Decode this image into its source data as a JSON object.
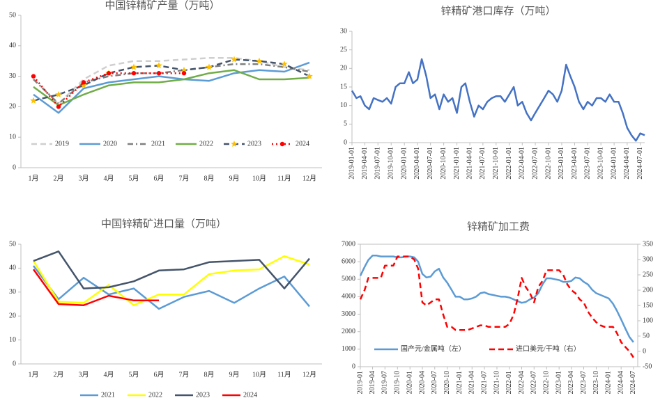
{
  "chart_data": [
    {
      "type": "line",
      "title": "中国锌精矿产量（万吨）",
      "categories": [
        "1月",
        "2月",
        "3月",
        "4月",
        "5月",
        "6月",
        "7月",
        "8月",
        "9月",
        "10月",
        "11月",
        "12月"
      ],
      "ylim": [
        0,
        50
      ],
      "yticks": [
        0,
        10,
        20,
        30,
        40,
        50
      ],
      "legend": "inside-bottom",
      "series": [
        {
          "name": "2019",
          "color": "#cfcfcf",
          "style": "dashed",
          "values": [
            29,
            21,
            29,
            33.5,
            35,
            35,
            35.5,
            36,
            36,
            35,
            33,
            32
          ]
        },
        {
          "name": "2020",
          "color": "#5b9bd5",
          "style": "solid",
          "values": [
            24,
            18,
            26,
            28,
            29,
            30,
            29,
            28.5,
            31,
            32,
            31.5,
            34.5
          ]
        },
        {
          "name": "2021",
          "color": "#7f7f7f",
          "style": "dashdot",
          "values": [
            29,
            21,
            28,
            30,
            31,
            31,
            32,
            33,
            34,
            34,
            33,
            31.5
          ]
        },
        {
          "name": "2022",
          "color": "#70ad47",
          "style": "solid",
          "values": [
            26.5,
            20.5,
            24,
            27,
            28,
            28,
            29,
            31,
            32,
            29,
            29,
            29.5
          ]
        },
        {
          "name": "2023",
          "color": "#44546a",
          "style": "dashed",
          "marker": "star",
          "marker_color": "#ffc000",
          "values": [
            22,
            24,
            27,
            31,
            33,
            33.5,
            32,
            33,
            35.5,
            35,
            34,
            30
          ]
        },
        {
          "name": "2024",
          "color": "#ff0000",
          "style": "dotted",
          "marker": "circle",
          "marker_color": "#ff0000",
          "values": [
            30,
            20,
            28,
            31,
            31,
            31,
            31,
            null,
            null,
            null,
            null,
            null
          ]
        }
      ]
    },
    {
      "type": "time-line",
      "title": "锌精矿港口库存（万吨）",
      "x": [
        "2019-01-01",
        "2019-02-01",
        "2019-03-01",
        "2019-04-01",
        "2019-05-01",
        "2019-06-01",
        "2019-07-01",
        "2019-08-01",
        "2019-09-01",
        "2019-10-01",
        "2019-11-01",
        "2019-12-01",
        "2020-01-01",
        "2020-02-01",
        "2020-03-01",
        "2020-04-01",
        "2020-05-01",
        "2020-06-01",
        "2020-07-01",
        "2020-08-01",
        "2020-09-01",
        "2020-10-01",
        "2020-11-01",
        "2020-12-01",
        "2021-01-01",
        "2021-02-01",
        "2021-03-01",
        "2021-04-01",
        "2021-05-01",
        "2021-06-01",
        "2021-07-01",
        "2021-08-01",
        "2021-09-01",
        "2021-10-01",
        "2021-11-01",
        "2021-12-01",
        "2022-01-01",
        "2022-02-01",
        "2022-03-01",
        "2022-04-01",
        "2022-05-01",
        "2022-06-01",
        "2022-07-01",
        "2022-08-01",
        "2022-09-01",
        "2022-10-01",
        "2022-11-01",
        "2022-12-01",
        "2023-01-01",
        "2023-02-01",
        "2023-03-01",
        "2023-04-01",
        "2023-05-01",
        "2023-06-01",
        "2023-07-01",
        "2023-08-01",
        "2023-09-01",
        "2023-10-01",
        "2023-11-01",
        "2023-12-01",
        "2024-01-01",
        "2024-02-01",
        "2024-03-01",
        "2024-04-01",
        "2024-05-01",
        "2024-06-01",
        "2024-07-01",
        "2024-08-01"
      ],
      "xlim": [
        "2019-01-01",
        "2024-08-01"
      ],
      "xticks": [
        "2019-01-01",
        "2019-04-01",
        "2019-07-01",
        "2019-10-01",
        "2020-01-01",
        "2020-04-01",
        "2020-07-01",
        "2020-10-01",
        "2021-01-01",
        "2021-04-01",
        "2021-07-01",
        "2021-10-01",
        "2022-01-01",
        "2022-04-01",
        "2022-07-01",
        "2022-10-01",
        "2023-01-01",
        "2023-04-01",
        "2023-07-01",
        "2023-10-01",
        "2024-01-01",
        "2024-04-01",
        "2024-07-01"
      ],
      "ylim": [
        0,
        30
      ],
      "yticks": [
        0,
        5,
        10,
        15,
        20,
        25,
        30
      ],
      "series": [
        {
          "color": "#4472c4",
          "style": "solid",
          "values": [
            14,
            12,
            12.5,
            10,
            9,
            12,
            11.5,
            11,
            12,
            10.5,
            15,
            16,
            16,
            19,
            16,
            17,
            22.5,
            18,
            12,
            13,
            9,
            13,
            11,
            12,
            8,
            15,
            16,
            11,
            7,
            10,
            9,
            11,
            12,
            12.5,
            12.5,
            11,
            13,
            15,
            10,
            11,
            8,
            6,
            8,
            10,
            12,
            14,
            13,
            11,
            14,
            21,
            18,
            15,
            11,
            9,
            11,
            10,
            12,
            12,
            11,
            13,
            11,
            11,
            8,
            4,
            2,
            0.5,
            2.5,
            2
          ]
        }
      ]
    },
    {
      "type": "line",
      "title": "中国锌精矿进口量（万吨）",
      "categories": [
        "1月",
        "2月",
        "3月",
        "4月",
        "5月",
        "6月",
        "7月",
        "8月",
        "9月",
        "10月",
        "11月",
        "12月"
      ],
      "ylim": [
        0,
        50
      ],
      "yticks": [
        0,
        10,
        20,
        30,
        40,
        50
      ],
      "legend": "below",
      "series": [
        {
          "name": "2021",
          "color": "#5b9bd5",
          "style": "solid",
          "values": [
            41,
            27,
            36,
            29,
            31.5,
            23,
            28,
            30.5,
            25.5,
            31.5,
            36.5,
            24
          ]
        },
        {
          "name": "2022",
          "color": "#ffff00",
          "style": "solid",
          "values": [
            43,
            26,
            25.5,
            33,
            24.5,
            29,
            29,
            37.5,
            39,
            39.5,
            45,
            41.5
          ]
        },
        {
          "name": "2023",
          "color": "#44546a",
          "style": "solid",
          "values": [
            43,
            47,
            31.5,
            32,
            34.5,
            39,
            39.5,
            42.5,
            43,
            43.5,
            31.5,
            44
          ]
        },
        {
          "name": "2024",
          "color": "#ff0000",
          "style": "solid",
          "values": [
            39.5,
            25,
            24.5,
            28.5,
            26.5,
            26.5,
            null,
            null,
            null,
            null,
            null,
            null
          ]
        }
      ]
    },
    {
      "type": "time-line",
      "title": "锌精矿加工费",
      "x": [
        "2019-01",
        "2019-02",
        "2019-03",
        "2019-04",
        "2019-05",
        "2019-06",
        "2019-07",
        "2019-08",
        "2019-09",
        "2019-10",
        "2019-11",
        "2019-12",
        "2020-01",
        "2020-02",
        "2020-03",
        "2020-04",
        "2020-05",
        "2020-06",
        "2020-07",
        "2020-08",
        "2020-09",
        "2020-10",
        "2020-11",
        "2020-12",
        "2021-01",
        "2021-02",
        "2021-03",
        "2021-04",
        "2021-05",
        "2021-06",
        "2021-07",
        "2021-08",
        "2021-09",
        "2021-10",
        "2021-11",
        "2021-12",
        "2022-01",
        "2022-02",
        "2022-03",
        "2022-04",
        "2022-05",
        "2022-06",
        "2022-07",
        "2022-08",
        "2022-09",
        "2022-10",
        "2022-11",
        "2022-12",
        "2023-01",
        "2023-02",
        "2023-03",
        "2023-04",
        "2023-05",
        "2023-06",
        "2023-07",
        "2023-08",
        "2023-09",
        "2023-10",
        "2023-11",
        "2023-12",
        "2024-01",
        "2024-02",
        "2024-03",
        "2024-04",
        "2024-05",
        "2024-06",
        "2024-07"
      ],
      "xlim": [
        "2019-01",
        "2024-08"
      ],
      "xticks": [
        "2019-01",
        "2019-04",
        "2019-07",
        "2019-10",
        "2020-01",
        "2020-04",
        "2020-07",
        "2020-10",
        "2021-01",
        "2021-04",
        "2021-07",
        "2021-10",
        "2022-01",
        "2022-04",
        "2022-07",
        "2022-10",
        "2023-01",
        "2023-04",
        "2023-07",
        "2023-10",
        "2024-01",
        "2024-04",
        "2024-07"
      ],
      "ylim": [
        0,
        7000
      ],
      "yticks": [
        0,
        1000,
        2000,
        3000,
        4000,
        5000,
        6000,
        7000
      ],
      "y2lim": [
        -50,
        350
      ],
      "y2ticks": [
        -50,
        0,
        50,
        100,
        150,
        200,
        250,
        300,
        350
      ],
      "legend": "inside-bottom",
      "series": [
        {
          "name": "国产元/金属吨（左）",
          "color": "#5b9bd5",
          "style": "solid",
          "values": [
            5200,
            5700,
            6100,
            6350,
            6350,
            6300,
            6300,
            6300,
            6300,
            6250,
            6250,
            6300,
            6300,
            6250,
            6000,
            5300,
            5100,
            5150,
            5450,
            5600,
            5100,
            4800,
            4400,
            4000,
            4000,
            3850,
            3850,
            3900,
            4000,
            4200,
            4250,
            4150,
            4100,
            4050,
            4000,
            4000,
            3950,
            3850,
            3750,
            3650,
            3700,
            3850,
            3950,
            4200,
            4700,
            5050,
            5050,
            5000,
            4950,
            4850,
            4850,
            4900,
            5100,
            5050,
            4850,
            4700,
            4400,
            4200,
            4100,
            4000,
            3900,
            3600,
            3200,
            2700,
            2200,
            1700,
            1400
          ]
        },
        {
          "name": "进口美元/干吨（右）",
          "color": "#ff0000",
          "style": "dashed",
          "axis": "y2",
          "values": [
            170,
            200,
            240,
            240,
            240,
            240,
            280,
            280,
            280,
            310,
            310,
            310,
            310,
            300,
            270,
            160,
            150,
            160,
            170,
            170,
            120,
            80,
            80,
            70,
            70,
            70,
            70,
            75,
            80,
            85,
            85,
            80,
            80,
            80,
            80,
            80,
            90,
            120,
            170,
            240,
            210,
            190,
            160,
            210,
            230,
            265,
            265,
            265,
            265,
            250,
            220,
            200,
            190,
            170,
            160,
            130,
            110,
            95,
            85,
            80,
            80,
            80,
            60,
            30,
            15,
            0,
            -20
          ]
        }
      ]
    }
  ]
}
